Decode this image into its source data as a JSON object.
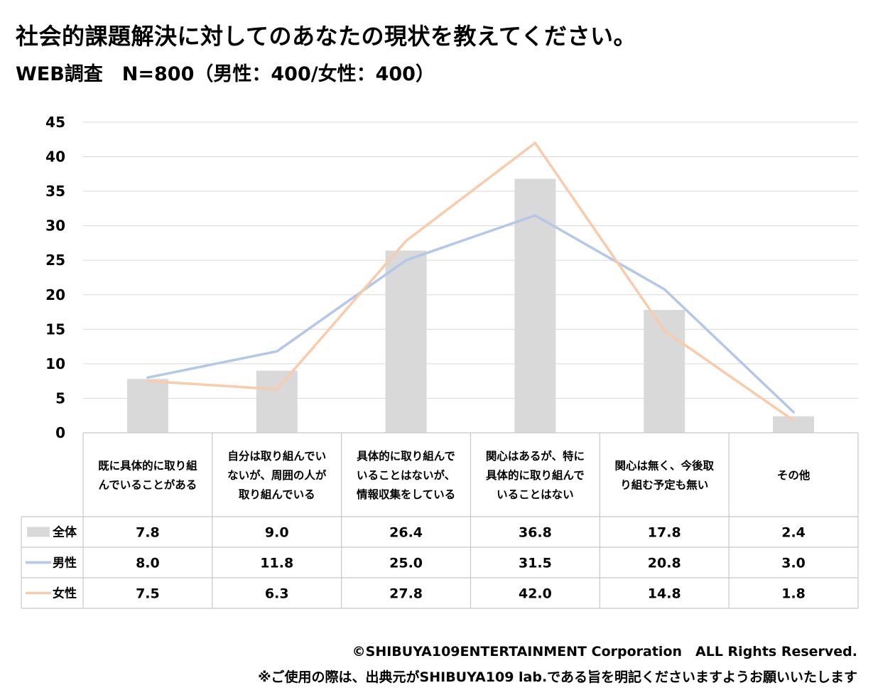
{
  "header": {
    "title": "社会的課題解決に対してのあなたの現状を教えてください。",
    "subtitle": "WEB調査　N=800（男性：400/女性：400）"
  },
  "footer": {
    "copyright": "©SHIBUYA109ENTERTAINMENT Corporation　ALL Rights Reserved.",
    "notice": "※ご使用の際は、出典元がSHIBUYA109 lab.である旨を明記くださいますようお願いいたします"
  },
  "chart_data": {
    "type": "bar",
    "categories": [
      [
        "既に具体的に取り組",
        "んでいることがある"
      ],
      [
        "自分は取り組んでい",
        "ないが、周囲の人が",
        "取り組んでいる"
      ],
      [
        "具体的に取り組んで",
        "いることはないが、",
        "情報収集をしている"
      ],
      [
        "関心はあるが、特に",
        "具体的に取り組んで",
        "いることはない"
      ],
      [
        "関心は無く、今後取",
        "り組む予定も無い"
      ],
      [
        "その他"
      ]
    ],
    "series": [
      {
        "name": "全体",
        "type": "bar",
        "color": "#d9d9d9",
        "values": [
          7.8,
          9.0,
          26.4,
          36.8,
          17.8,
          2.4
        ],
        "labels": [
          "7.8",
          "9.0",
          "26.4",
          "36.8",
          "17.8",
          "2.4"
        ]
      },
      {
        "name": "男性",
        "type": "line",
        "color": "#b4c7e7",
        "values": [
          8.0,
          11.8,
          25.0,
          31.5,
          20.8,
          3.0
        ],
        "labels": [
          "8.0",
          "11.8",
          "25.0",
          "31.5",
          "20.8",
          "3.0"
        ]
      },
      {
        "name": "女性",
        "type": "line",
        "color": "#f8cbad",
        "values": [
          7.5,
          6.3,
          27.8,
          42.0,
          14.8,
          1.8
        ],
        "labels": [
          "7.5",
          "6.3",
          "27.8",
          "42.0",
          "14.8",
          "1.8"
        ]
      }
    ],
    "ylim": [
      0,
      45
    ],
    "yticks": [
      0,
      5,
      10,
      15,
      20,
      25,
      30,
      35,
      40,
      45
    ],
    "grid": true,
    "legend": "data-table"
  }
}
